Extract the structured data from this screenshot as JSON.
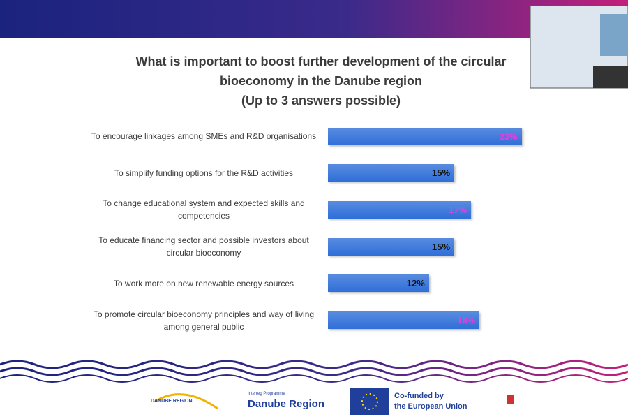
{
  "chart_data": {
    "type": "bar",
    "orientation": "horizontal",
    "title": "What is important to boost further development of the circular bioeconomy in the Danube region",
    "subtitle": "(Up to 3 answers possible)",
    "categories": [
      "To encourage linkages among SMEs and R&D organisations",
      "To simplify funding options for the R&D activities",
      "To change educational system and expected skills and competencies",
      "To educate financing sector and possible investors about circular bioeconomy",
      "To work more on new renewable energy sources",
      "To promote circular bioeconomy principles and way of living among general public"
    ],
    "values": [
      23,
      15,
      17,
      15,
      12,
      18
    ],
    "value_labels": [
      "23%",
      "15%",
      "17%",
      "15%",
      "12%",
      "18%"
    ],
    "value_label_colors": [
      "#e040e0",
      "#111111",
      "#e040e0",
      "#111111",
      "#111111",
      "#e040e0"
    ],
    "color": "#2f6fd8"
  },
  "footer": {
    "strategy": "DANUBE REGION",
    "programme": "Interreg Programme",
    "programme_name": "Danube Region",
    "eu_line1": "Co-funded by",
    "eu_line2": "the European Union"
  }
}
